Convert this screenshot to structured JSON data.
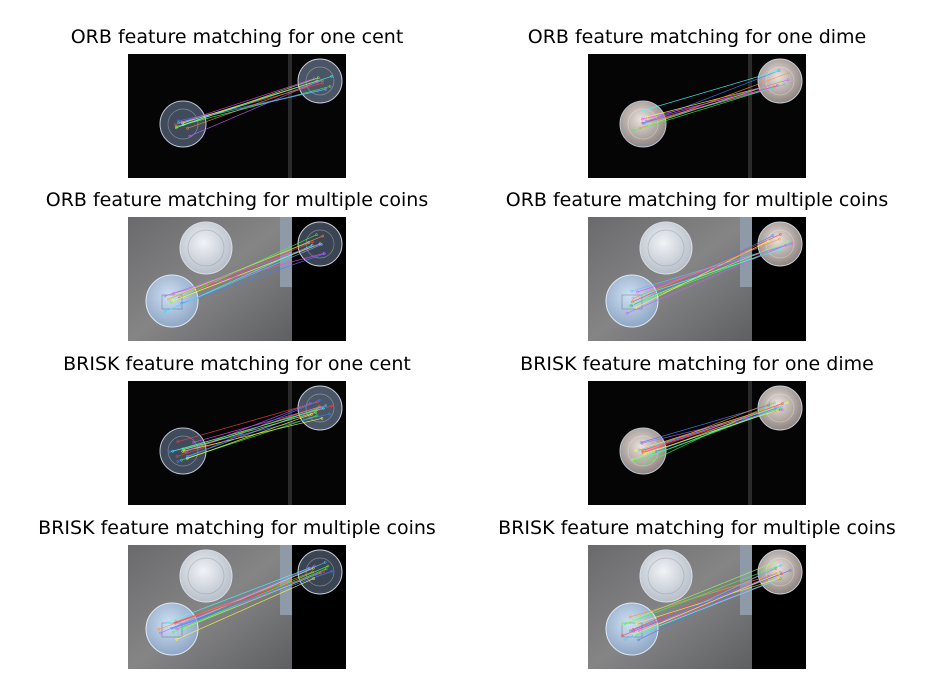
{
  "panels": [
    {
      "title": "ORB feature matching for one cent",
      "coin": "cent",
      "scene": "dark",
      "detector": "orb"
    },
    {
      "title": "ORB feature matching for one dime",
      "coin": "dime",
      "scene": "dark",
      "detector": "orb"
    },
    {
      "title": "ORB feature matching for multiple coins",
      "coin": "cent",
      "scene": "multi",
      "detector": "orb"
    },
    {
      "title": "ORB feature matching for multiple coins",
      "coin": "dime",
      "scene": "multi",
      "detector": "orb"
    },
    {
      "title": "BRISK feature matching for one cent",
      "coin": "cent",
      "scene": "dark",
      "detector": "brisk"
    },
    {
      "title": "BRISK feature matching for one dime",
      "coin": "dime",
      "scene": "dark",
      "detector": "brisk"
    },
    {
      "title": "BRISK feature matching for multiple coins",
      "coin": "cent",
      "scene": "multi",
      "detector": "brisk"
    },
    {
      "title": "BRISK feature matching for multiple coins",
      "coin": "dime",
      "scene": "multi",
      "detector": "brisk"
    }
  ],
  "line_colors": [
    "#ff4040",
    "#40ff40",
    "#4080ff",
    "#ffff40",
    "#ff40ff",
    "#40ffff",
    "#ff9040",
    "#a0ff60",
    "#c060ff",
    "#60c0ff"
  ]
}
